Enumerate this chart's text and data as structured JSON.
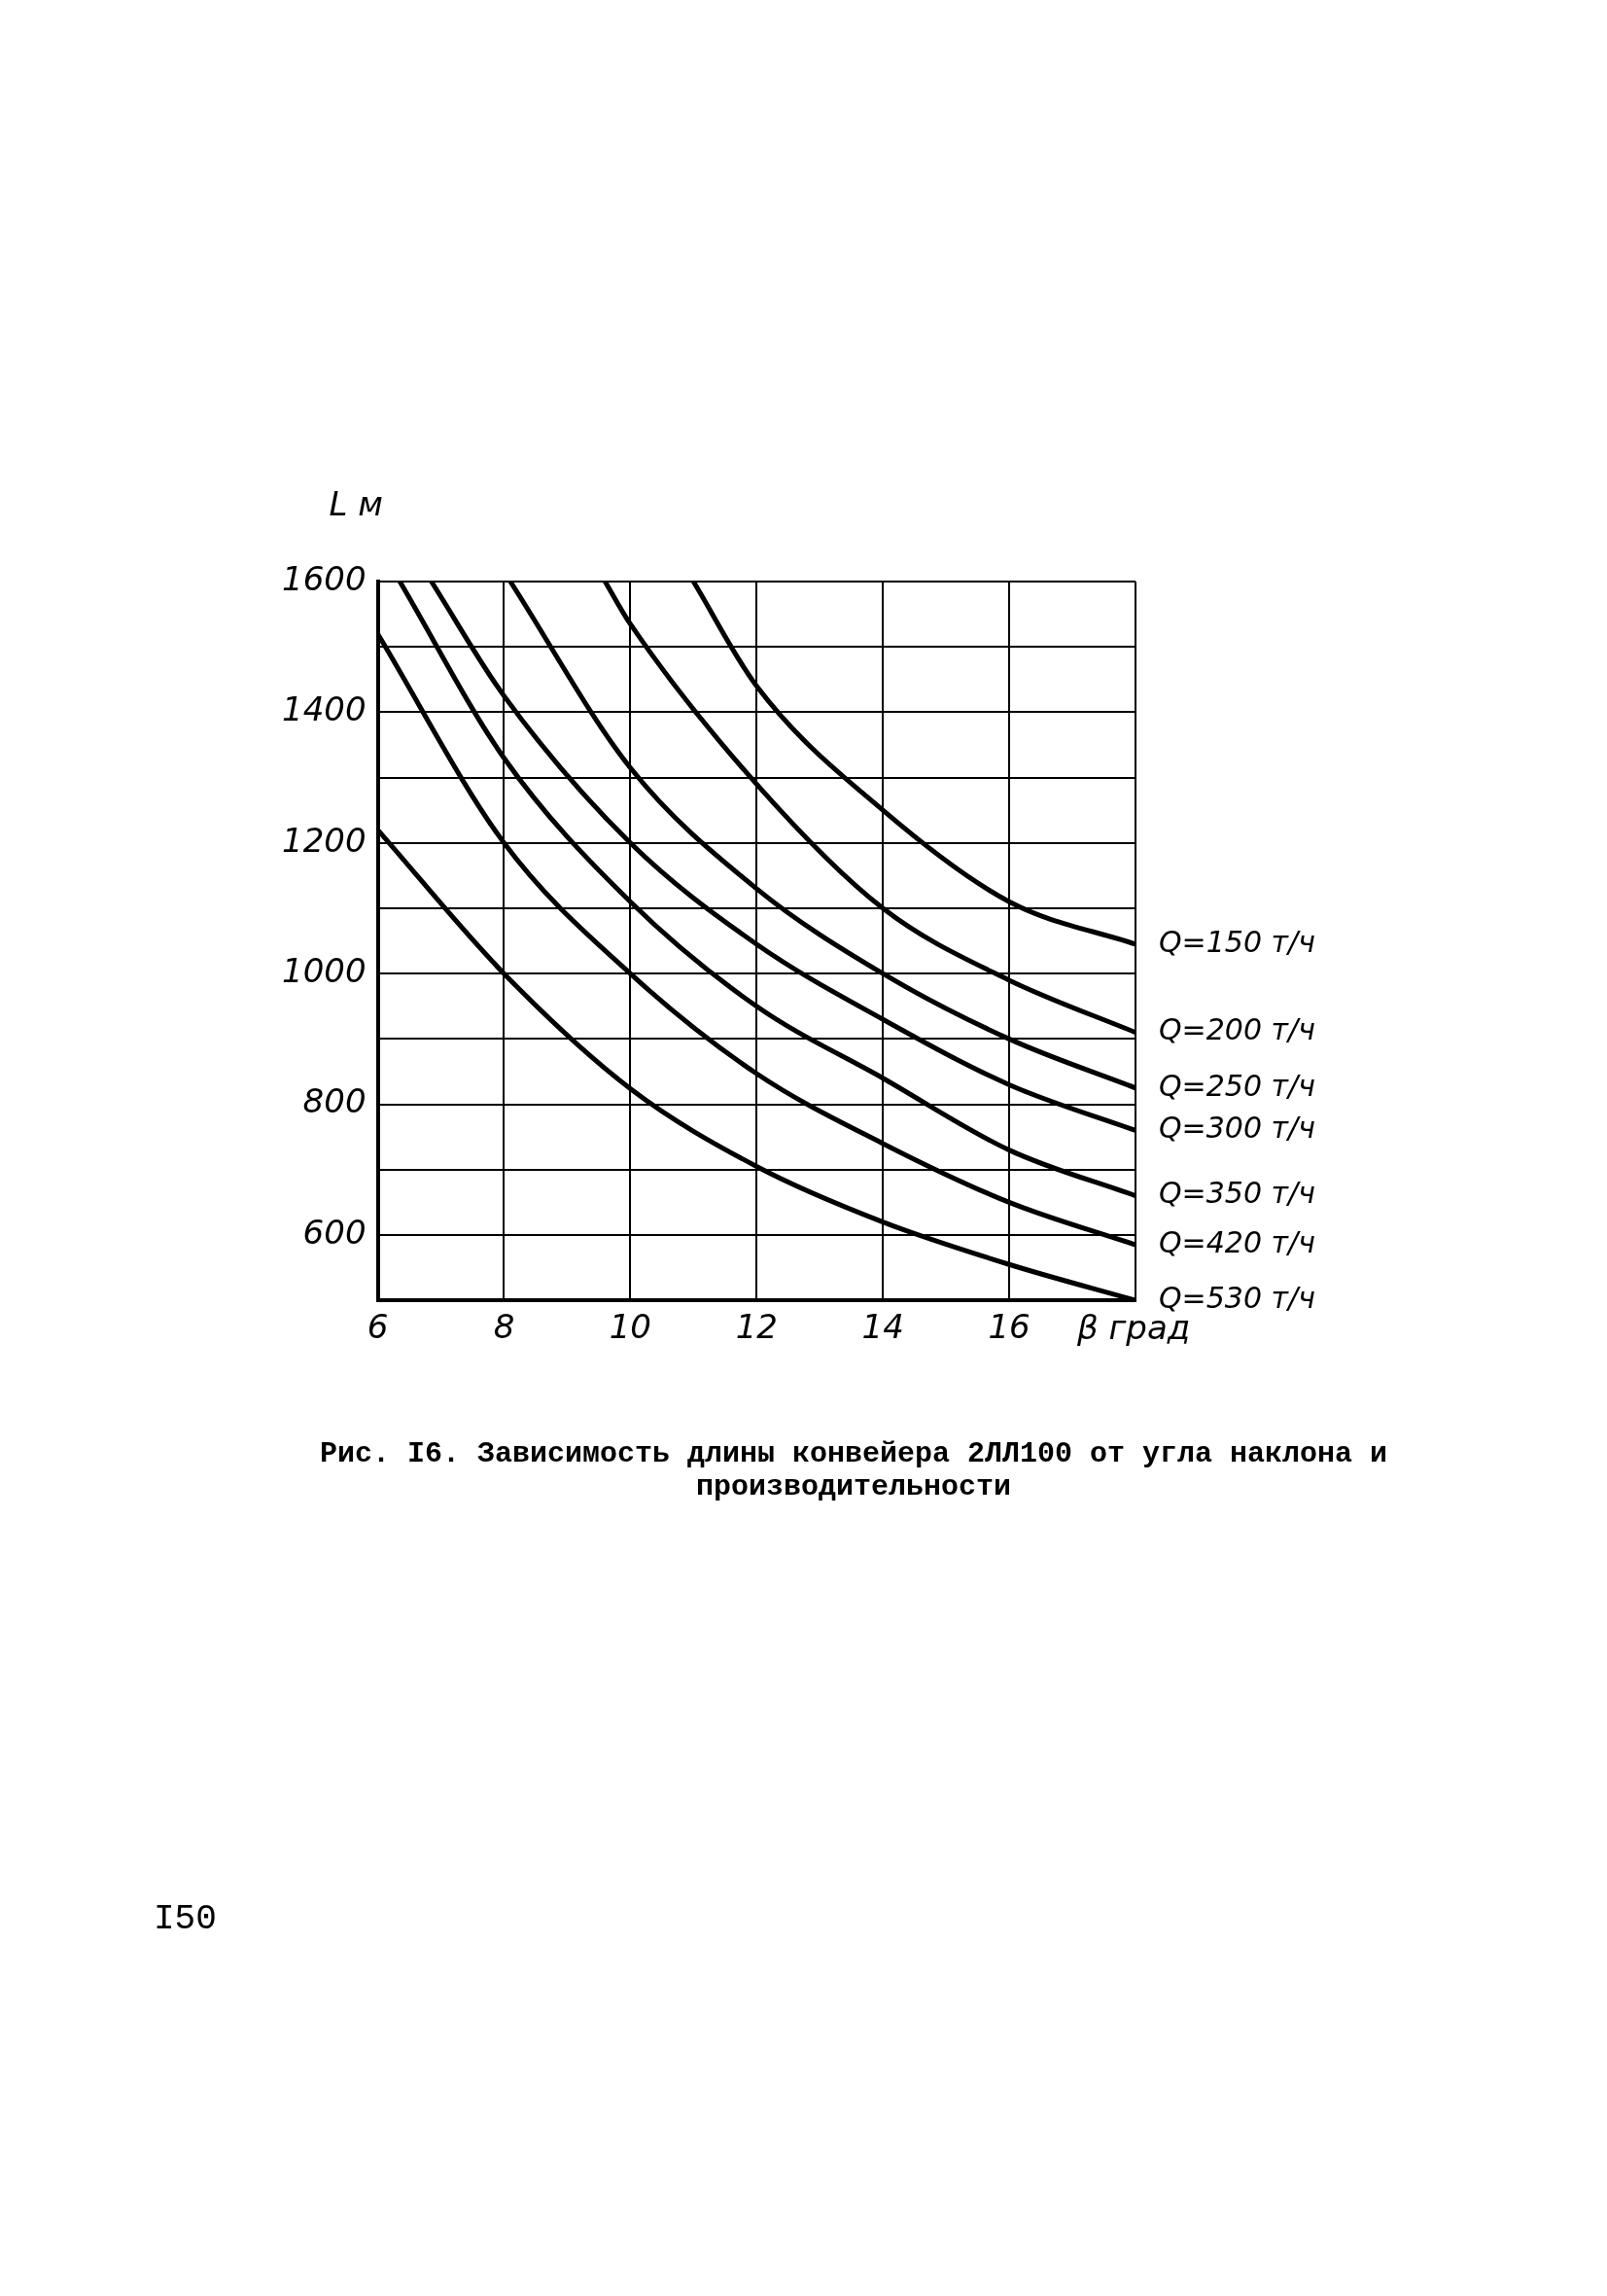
{
  "chart_data": {
    "type": "line",
    "xlabel": "β град",
    "ylabel": "L м",
    "xlim": [
      6,
      18
    ],
    "xticks": [
      6,
      8,
      10,
      12,
      14,
      16,
      {
        "value": 18,
        "label": null
      }
    ],
    "ylim": [
      500,
      1600
    ],
    "yticks": [
      {
        "value": 500,
        "label": null
      },
      600,
      {
        "value": 700,
        "label": null
      },
      800,
      {
        "value": 900,
        "label": null
      },
      1000,
      {
        "value": 1100,
        "label": null
      },
      1200,
      {
        "value": 1300,
        "label": null
      },
      1400,
      {
        "value": 1500,
        "label": null
      },
      1600
    ],
    "grid": true,
    "legend": false,
    "marker": "none",
    "line_style": "solid",
    "series": [
      {
        "name": "Q=150 т/ч",
        "color": "#000000",
        "x": [
          11,
          12,
          14,
          16,
          18
        ],
        "values": [
          1600,
          1440,
          1250,
          1110,
          1045
        ]
      },
      {
        "name": "Q=200 т/ч",
        "color": "#000000",
        "x": [
          9.6,
          10,
          12,
          14,
          16,
          18
        ],
        "values": [
          1600,
          1535,
          1290,
          1100,
          990,
          910
        ]
      },
      {
        "name": "Q=250 т/ч",
        "color": "#000000",
        "x": [
          8.1,
          10,
          12,
          14,
          16,
          18
        ],
        "values": [
          1600,
          1315,
          1130,
          1000,
          900,
          825
        ]
      },
      {
        "name": "Q=300 т/ч",
        "color": "#000000",
        "x": [
          6.85,
          8,
          10,
          12,
          14,
          16,
          18
        ],
        "values": [
          1600,
          1425,
          1200,
          1045,
          930,
          830,
          760
        ]
      },
      {
        "name": "Q=350 т/ч",
        "color": "#000000",
        "x": [
          6.35,
          8,
          10,
          12,
          14,
          16,
          18
        ],
        "values": [
          1600,
          1330,
          1110,
          950,
          840,
          730,
          660
        ]
      },
      {
        "name": "Q=420 т/ч",
        "color": "#000000",
        "x": [
          6,
          8,
          10,
          12,
          14,
          16,
          18
        ],
        "values": [
          1520,
          1200,
          1000,
          847,
          740,
          650,
          585
        ]
      },
      {
        "name": "Q=530 т/ч",
        "color": "#000000",
        "x": [
          6,
          8,
          10,
          12,
          14,
          16,
          18
        ],
        "values": [
          1220,
          1000,
          824,
          705,
          620,
          555,
          500
        ]
      }
    ],
    "annotations": [
      "Рис. I6. Зависимость длины конвейера 2ЛЛ100 от угла наклона и производительности",
      "I50"
    ]
  }
}
